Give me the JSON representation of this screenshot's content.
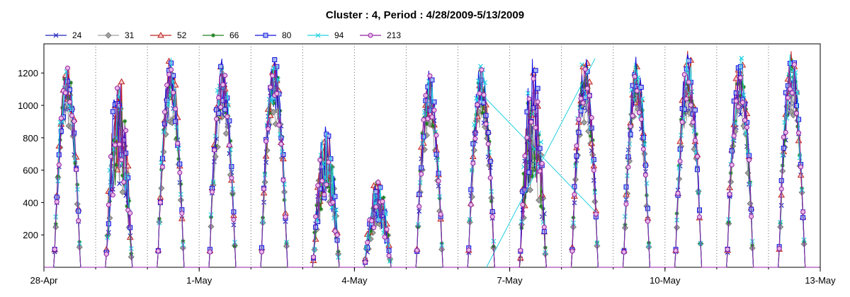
{
  "chart_data": {
    "type": "line",
    "title": "Cluster : 4, Period : 4/28/2009-5/13/2009",
    "xlabel": "",
    "ylabel": "",
    "x_range_days": [
      0,
      15
    ],
    "ylim": [
      0,
      1380
    ],
    "x_ticks": [
      {
        "day": 0,
        "label": "28-Apr"
      },
      {
        "day": 3,
        "label": "1-May"
      },
      {
        "day": 6,
        "label": "4-May"
      },
      {
        "day": 9,
        "label": "7-May"
      },
      {
        "day": 12,
        "label": "10-May"
      },
      {
        "day": 15,
        "label": "13-May"
      }
    ],
    "y_ticks": [
      200,
      400,
      600,
      800,
      1000,
      1200
    ],
    "grid": "vertical dotted lines at day boundaries",
    "legend_position": "top",
    "daily_peaks_approx": [
      1290,
      1210,
      1300,
      1280,
      1310,
      900,
      560,
      1210,
      1270,
      1280,
      1320,
      1300,
      1340,
      1310,
      1360
    ],
    "series": [
      {
        "name": "24",
        "color": "#2020c0",
        "marker": "x"
      },
      {
        "name": "31",
        "color": "#a0a0a0",
        "marker": "diamond"
      },
      {
        "name": "52",
        "color": "#c02020",
        "marker": "triangle"
      },
      {
        "name": "66",
        "color": "#208020",
        "marker": "star"
      },
      {
        "name": "80",
        "color": "#1010e0",
        "marker": "square"
      },
      {
        "name": "94",
        "color": "#20d0e0",
        "marker": "x"
      },
      {
        "name": "213",
        "color": "#9020a0",
        "marker": "circle"
      }
    ]
  }
}
